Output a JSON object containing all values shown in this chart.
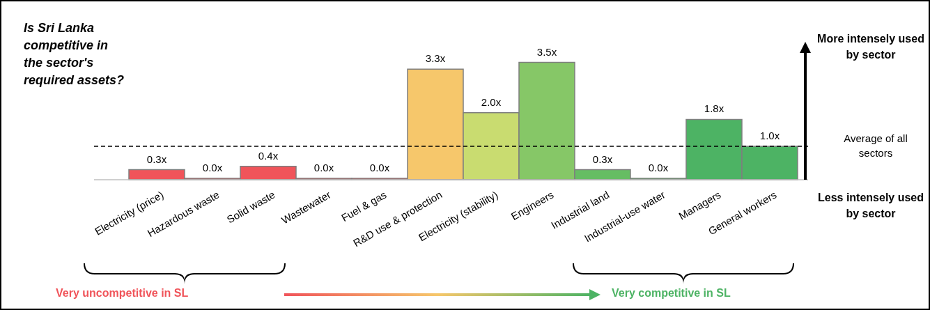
{
  "chart_data": {
    "type": "bar",
    "title": "Is Sri Lanka competitive in the sector's required assets?",
    "categories": [
      "Electricity (price)",
      "Hazardous waste",
      "Solid waste",
      "Wastewater",
      "Fuel & gas",
      "R&D use & protection",
      "Electricity (stability)",
      "Engineers",
      "Industrial land",
      "Industrial-use water",
      "Managers",
      "General workers"
    ],
    "values": [
      0.3,
      0.0,
      0.4,
      0.0,
      0.0,
      3.3,
      2.0,
      3.5,
      0.3,
      0.0,
      1.8,
      1.0
    ],
    "value_labels": [
      "0.3x",
      "0.0x",
      "0.4x",
      "0.0x",
      "0.0x",
      "3.3x",
      "2.0x",
      "3.5x",
      "0.3x",
      "0.0x",
      "1.8x",
      "1.0x"
    ],
    "colors": [
      "#f0545a",
      "#f0545a",
      "#f0545a",
      "#f0545a",
      "#f0545a",
      "#f6c76b",
      "#c9dc70",
      "#86c767",
      "#66bd63",
      "#59b862",
      "#4db364",
      "#4db364"
    ],
    "ref_lines": [
      {
        "axis": "y",
        "value": 1,
        "label": "Average of all sectors",
        "line_style": "dashed",
        "color": "#000000"
      }
    ],
    "annotations": [
      "More intensely used by sector",
      "Less intensely used by sector",
      "Very uncompetitive in SL",
      "Very competitive in SL"
    ],
    "grid": false,
    "legend": false
  }
}
